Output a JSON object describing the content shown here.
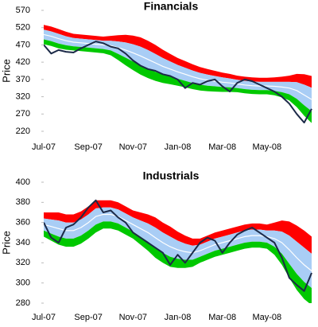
{
  "chart_data": [
    {
      "type": "band",
      "title": "Financials",
      "ylabel": "Price",
      "categories": [
        "Jul-07",
        null,
        null,
        null,
        null,
        null,
        "Sep-07",
        null,
        null,
        null,
        null,
        null,
        "Nov-07",
        null,
        null,
        null,
        null,
        null,
        "Jan-08",
        null,
        null,
        null,
        null,
        null,
        "Mar-08",
        null,
        null,
        null,
        null,
        null,
        "May-08",
        null,
        null,
        null,
        null,
        null,
        null
      ],
      "ylim": [
        220,
        570
      ],
      "yticks": [
        220,
        270,
        320,
        370,
        420,
        470,
        520,
        570
      ],
      "series": [
        {
          "style": "band",
          "color": "#ff0000",
          "values": [
            528,
            523,
            516,
            508,
            502,
            500,
            498,
            496,
            494,
            496,
            498,
            499,
            497,
            492,
            482,
            470,
            456,
            444,
            432,
            423,
            414,
            406,
            400,
            395,
            390,
            386,
            381,
            378,
            376,
            375,
            375,
            376,
            378,
            381,
            386,
            385,
            380
          ]
        },
        {
          "style": "band",
          "color": "#a9cdf5",
          "values": [
            514,
            509,
            502,
            495,
            490,
            488,
            486,
            484,
            482,
            482,
            480,
            477,
            472,
            465,
            455,
            444,
            432,
            422,
            412,
            404,
            396,
            389,
            384,
            380,
            376,
            373,
            369,
            366,
            364,
            363,
            363,
            363,
            363,
            363,
            362,
            355,
            346
          ]
        },
        {
          "style": "band",
          "color": "#00c800",
          "values": [
            486,
            481,
            474,
            469,
            466,
            464,
            462,
            460,
            458,
            454,
            444,
            433,
            422,
            411,
            401,
            392,
            384,
            378,
            372,
            366,
            360,
            355,
            352,
            350,
            348,
            347,
            345,
            342,
            340,
            339,
            339,
            337,
            333,
            327,
            314,
            295,
            278
          ]
        },
        {
          "style": "band",
          "color": "#00c800",
          "values": [
            472,
            467,
            460,
            456,
            454,
            452,
            450,
            448,
            446,
            440,
            426,
            411,
            397,
            384,
            374,
            366,
            360,
            356,
            352,
            347,
            342,
            338,
            336,
            335,
            334,
            334,
            333,
            330,
            328,
            327,
            327,
            324,
            318,
            309,
            290,
            265,
            244
          ]
        },
        {
          "style": "line",
          "color": "#ffffff",
          "values": [
            500,
            495,
            488,
            482,
            478,
            476,
            474,
            472,
            470,
            468,
            462,
            455,
            447,
            438,
            428,
            418,
            408,
            400,
            392,
            385,
            378,
            372,
            368,
            365,
            362,
            360,
            357,
            354,
            352,
            351,
            351,
            350,
            348,
            345,
            338,
            325,
            312
          ]
        },
        {
          "style": "line",
          "color": "#1c2a48",
          "values": [
            470,
            445,
            455,
            450,
            448,
            460,
            470,
            480,
            475,
            465,
            460,
            445,
            425,
            410,
            400,
            395,
            385,
            380,
            370,
            345,
            360,
            355,
            365,
            370,
            350,
            335,
            360,
            370,
            365,
            355,
            345,
            335,
            320,
            300,
            270,
            245,
            285
          ]
        }
      ]
    },
    {
      "type": "band",
      "title": "Industrials",
      "ylabel": "Price",
      "categories": [
        "Jul-07",
        null,
        null,
        null,
        null,
        null,
        "Sep-07",
        null,
        null,
        null,
        null,
        null,
        "Nov-07",
        null,
        null,
        null,
        null,
        null,
        "Jan-08",
        null,
        null,
        null,
        null,
        null,
        "Mar-08",
        null,
        null,
        null,
        null,
        null,
        "May-08",
        null,
        null,
        null,
        null,
        null,
        null
      ],
      "ylim": [
        280,
        400
      ],
      "yticks": [
        280,
        300,
        320,
        340,
        360,
        380,
        400
      ],
      "series": [
        {
          "style": "band",
          "color": "#ff0000",
          "values": [
            370,
            370,
            370,
            368,
            368,
            371,
            376,
            382,
            382,
            382,
            380,
            376,
            372,
            370,
            368,
            365,
            360,
            356,
            351,
            347,
            344,
            344,
            347,
            350,
            352,
            354,
            356,
            358,
            359,
            359,
            358,
            360,
            362,
            361,
            357,
            352,
            346
          ]
        },
        {
          "style": "band",
          "color": "#a9cdf5",
          "values": [
            364,
            363,
            362,
            360,
            360,
            363,
            368,
            374,
            375,
            375,
            373,
            369,
            365,
            362,
            359,
            355,
            350,
            346,
            342,
            339,
            337,
            338,
            341,
            344,
            346,
            348,
            350,
            352,
            353,
            353,
            352,
            352,
            351,
            347,
            341,
            335,
            329
          ]
        },
        {
          "style": "band",
          "color": "#00c800",
          "values": [
            352,
            349,
            346,
            344,
            344,
            347,
            352,
            358,
            361,
            361,
            359,
            355,
            351,
            346,
            341,
            335,
            330,
            326,
            324,
            323,
            323,
            326,
            329,
            332,
            334,
            336,
            338,
            340,
            341,
            341,
            340,
            336,
            329,
            319,
            309,
            301,
            295
          ]
        },
        {
          "style": "band",
          "color": "#00c800",
          "values": [
            346,
            342,
            338,
            336,
            336,
            339,
            344,
            350,
            354,
            354,
            352,
            348,
            344,
            338,
            332,
            325,
            320,
            316,
            315,
            315,
            316,
            320,
            323,
            326,
            328,
            330,
            332,
            334,
            335,
            335,
            334,
            328,
            318,
            305,
            293,
            284,
            278
          ]
        },
        {
          "style": "line",
          "color": "#ffffff",
          "values": [
            358,
            356,
            354,
            352,
            352,
            355,
            360,
            366,
            368,
            368,
            366,
            362,
            358,
            354,
            350,
            345,
            340,
            336,
            333,
            331,
            330,
            332,
            335,
            338,
            340,
            342,
            344,
            346,
            347,
            347,
            346,
            344,
            340,
            333,
            325,
            318,
            312
          ]
        },
        {
          "style": "line",
          "color": "#1c2a48",
          "values": [
            360,
            345,
            340,
            355,
            358,
            365,
            375,
            382,
            370,
            372,
            365,
            360,
            350,
            345,
            340,
            335,
            330,
            318,
            328,
            320,
            330,
            340,
            345,
            342,
            330,
            340,
            348,
            352,
            355,
            350,
            345,
            340,
            325,
            305,
            298,
            292,
            310
          ]
        }
      ]
    }
  ]
}
